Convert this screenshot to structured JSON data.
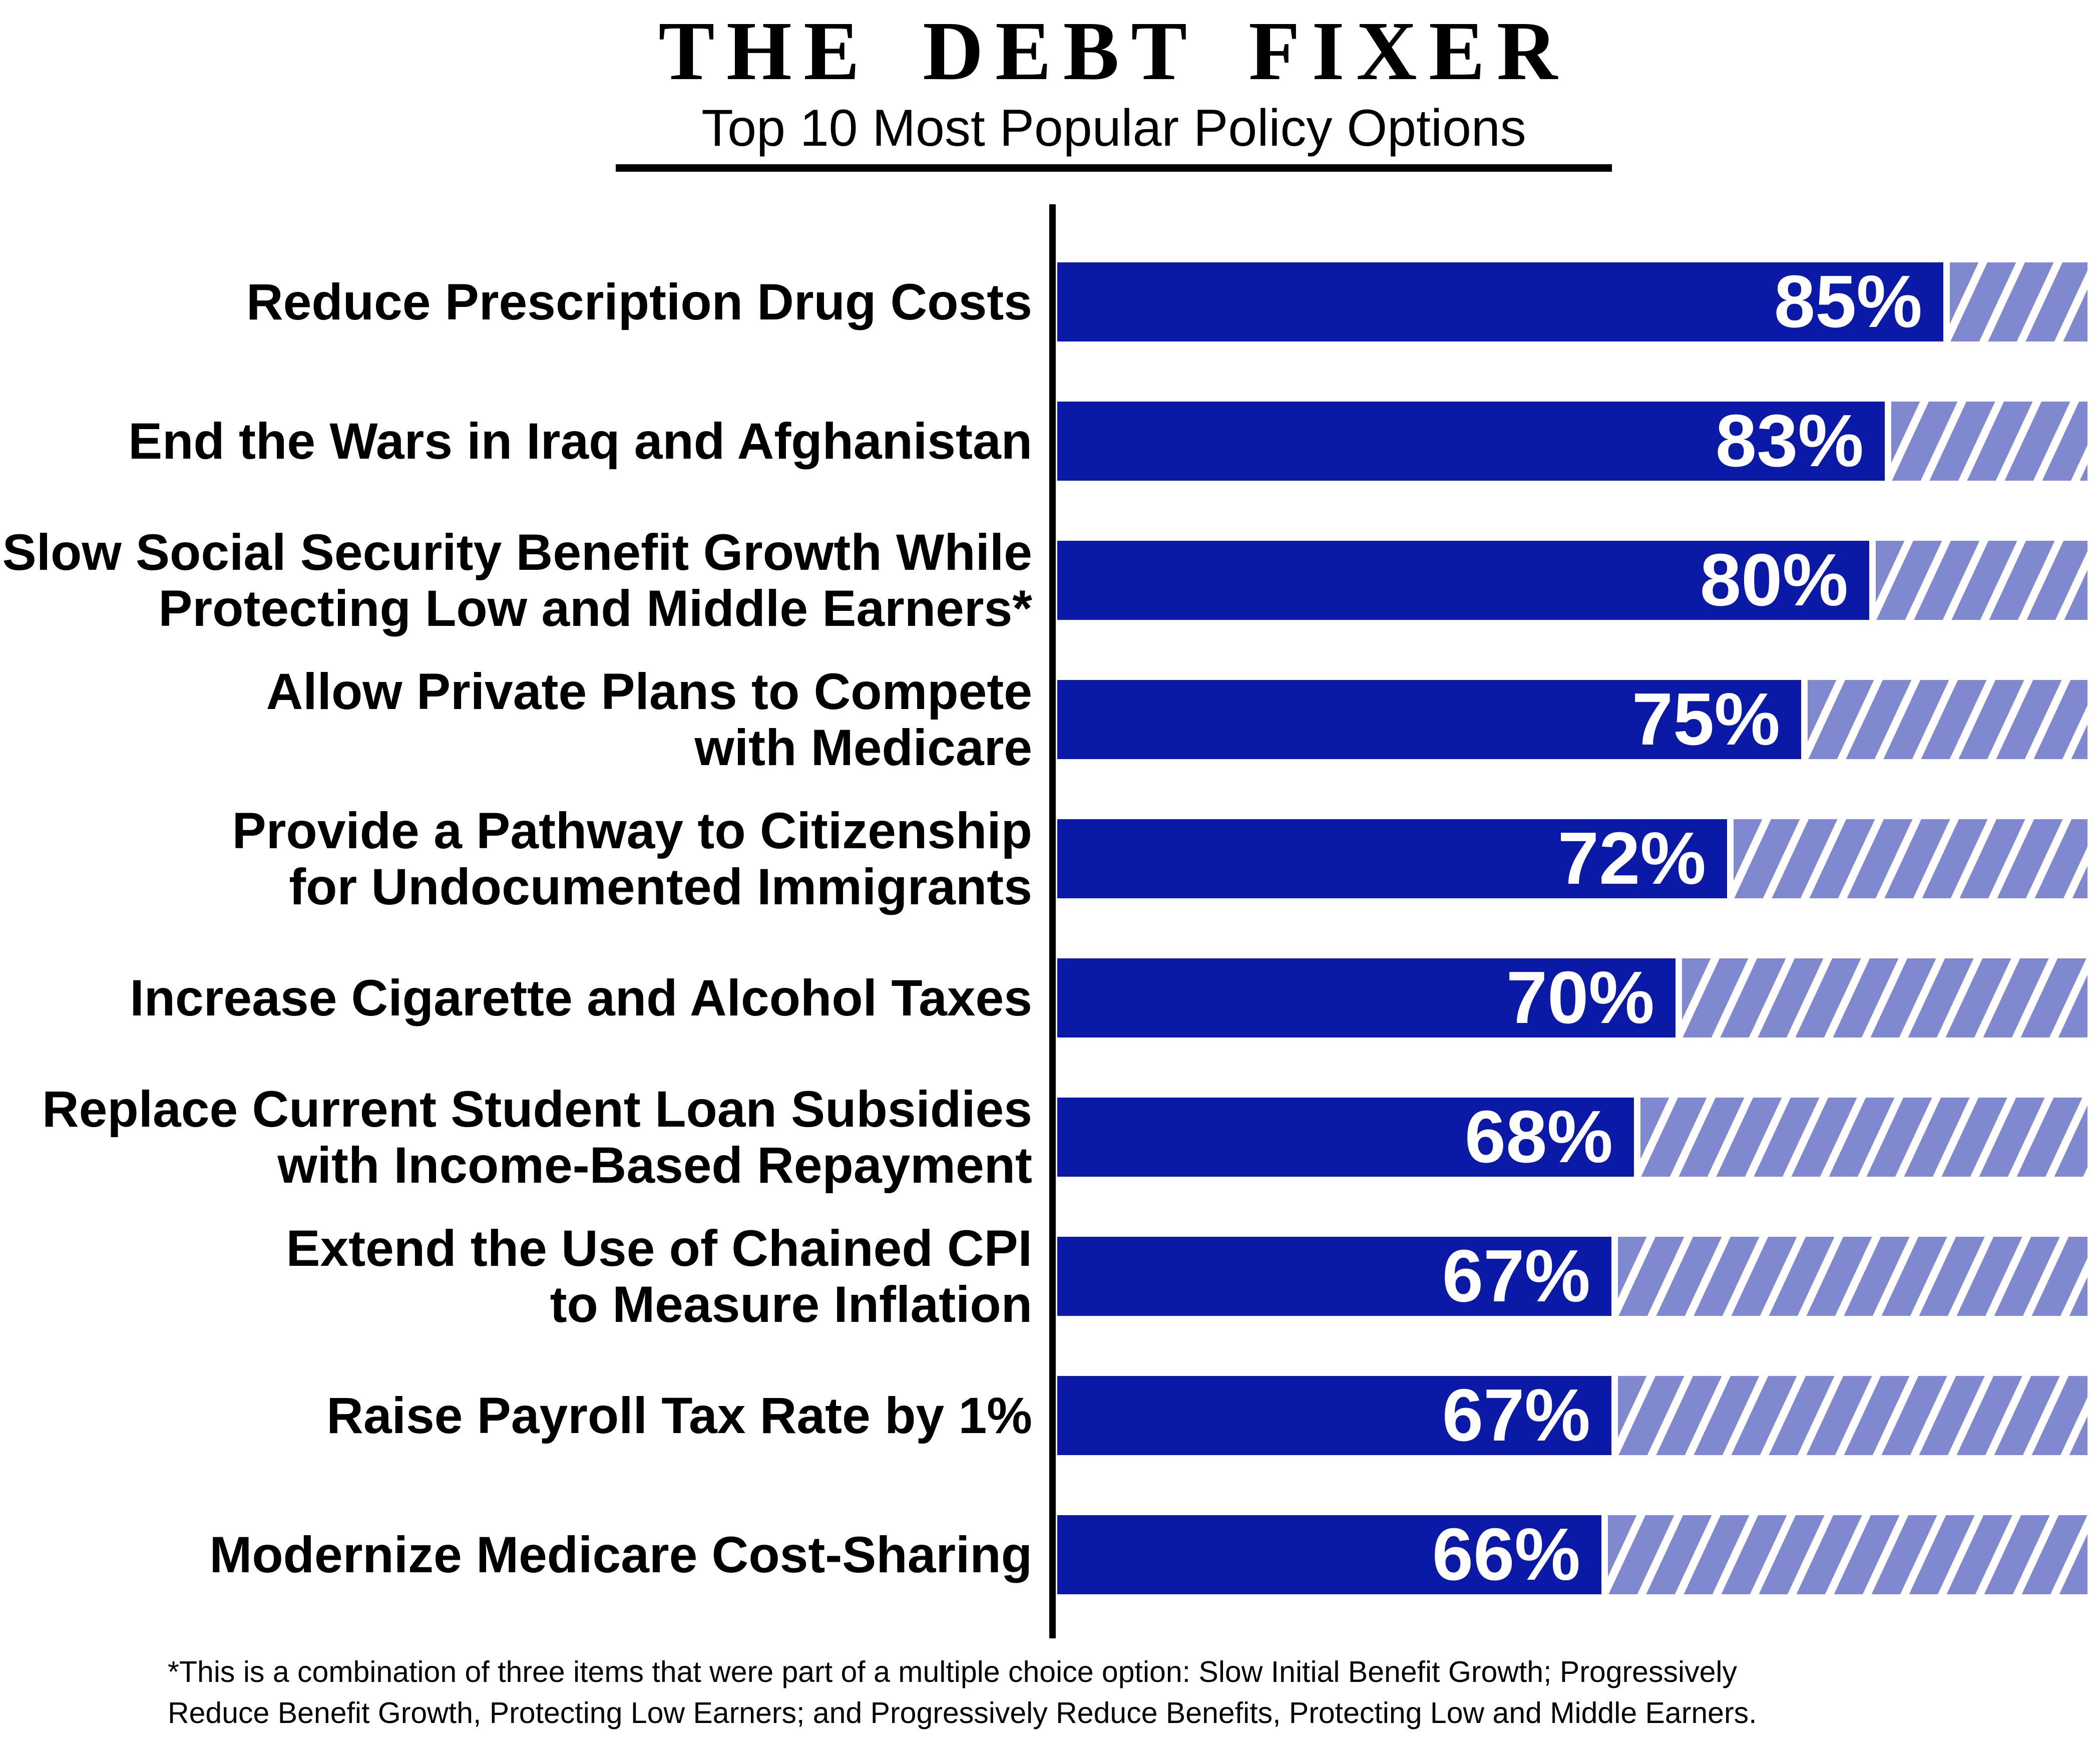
{
  "header": {
    "title": "THE DEBT FIXER",
    "subtitle": "Top 10 Most Popular Policy Options"
  },
  "footnote": {
    "lines": [
      "*This is a combination of three items that were part of a multiple choice option: Slow Initial Benefit Growth; Progressively",
      "Reduce Benefit Growth, Protecting Low Earners; and Progressively Reduce Benefits, Protecting Low and Middle Earners."
    ]
  },
  "chart_data": {
    "type": "bar",
    "orientation": "horizontal",
    "title": "THE DEBT FIXER",
    "subtitle": "Top 10 Most Popular Policy Options",
    "unit": "%",
    "xlim": [
      0,
      100
    ],
    "grid": false,
    "legend": false,
    "colors": {
      "bar": "#0b1aa6",
      "hatch_stripe": "#8089d0",
      "hatch_background": "#ffffff",
      "axis": "#000000",
      "value_text": "#ffffff",
      "label_text": "#000000"
    },
    "categories": [
      "Reduce Prescription Drug Costs",
      "End the Wars in Iraq and Afghanistan",
      "Slow Social Security Benefit Growth While Protecting Low and Middle Earners*",
      "Allow Private Plans to Compete with Medicare",
      "Provide a Pathway to Citizenship for Undocumented Immigrants",
      "Increase Cigarette and Alcohol Taxes",
      "Replace Current Student Loan Subsidies with Income-Based Repayment",
      "Extend the Use of Chained CPI to Measure Inflation",
      "Raise Payroll Tax Rate by 1%",
      "Modernize Medicare Cost-Sharing"
    ],
    "values": [
      85,
      83,
      80,
      75,
      72,
      70,
      68,
      67,
      67,
      66
    ],
    "bars": [
      {
        "label_lines": [
          "Reduce Prescription Drug Costs"
        ],
        "value": 85,
        "display_label": "85%",
        "track_fraction": 0.86
      },
      {
        "label_lines": [
          "End the Wars in Iraq and Afghanistan"
        ],
        "value": 83,
        "display_label": "83%",
        "track_fraction": 0.803
      },
      {
        "label_lines": [
          "Slow Social Security Benefit Growth While",
          "Protecting Low and Middle Earners*"
        ],
        "value": 80,
        "display_label": "80%",
        "track_fraction": 0.788
      },
      {
        "label_lines": [
          "Allow Private Plans to Compete",
          "with Medicare"
        ],
        "value": 75,
        "display_label": "75%",
        "track_fraction": 0.722
      },
      {
        "label_lines": [
          "Provide a Pathway to Citizenship",
          "for Undocumented Immigrants"
        ],
        "value": 72,
        "display_label": "72%",
        "track_fraction": 0.65
      },
      {
        "label_lines": [
          "Increase Cigarette and Alcohol Taxes"
        ],
        "value": 70,
        "display_label": "70%",
        "track_fraction": 0.6
      },
      {
        "label_lines": [
          "Replace Current Student Loan Subsidies",
          "with Income-Based Repayment"
        ],
        "value": 68,
        "display_label": "68%",
        "track_fraction": 0.56
      },
      {
        "label_lines": [
          "Extend the Use of Chained CPI",
          "to Measure Inflation"
        ],
        "value": 67,
        "display_label": "67%",
        "track_fraction": 0.538
      },
      {
        "label_lines": [
          "Raise Payroll Tax Rate by 1%"
        ],
        "value": 67,
        "display_label": "67%",
        "track_fraction": 0.538
      },
      {
        "label_lines": [
          "Modernize Medicare Cost-Sharing"
        ],
        "value": 66,
        "display_label": "66%",
        "track_fraction": 0.528
      }
    ]
  }
}
